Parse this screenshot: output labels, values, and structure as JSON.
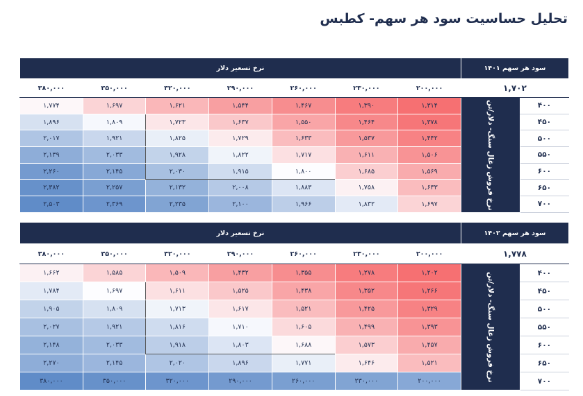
{
  "title": "تحلیل حساسیت سود هر سهم- کطبس",
  "tables": [
    {
      "eps_label": "سود هر سهم ۱۴۰۱",
      "eps_value": "۱,۷۰۲",
      "column_group": "نرخ تسعیر دلار",
      "row_group": "نرخ فروش زغال سنگ- دلار/تن",
      "columns": [
        "۲۰۰,۰۰۰",
        "۲۳۰,۰۰۰",
        "۲۶۰,۰۰۰",
        "۲۹۰,۰۰۰",
        "۳۲۰,۰۰۰",
        "۳۵۰,۰۰۰",
        "۳۸۰,۰۰۰"
      ],
      "rows": [
        {
          "label": "۴۰۰",
          "cells": [
            "۱,۳۱۴",
            "۱,۳۹۰",
            "۱,۴۶۷",
            "۱,۵۴۴",
            "۱,۶۲۱",
            "۱,۶۹۷",
            "۱,۷۷۴"
          ]
        },
        {
          "label": "۴۵۰",
          "cells": [
            "۱,۳۷۸",
            "۱,۴۶۴",
            "۱,۵۵۰",
            "۱,۶۳۷",
            "۱,۷۲۳",
            "۱,۸۰۹",
            "۱,۸۹۶"
          ]
        },
        {
          "label": "۵۰۰",
          "cells": [
            "۱,۴۴۲",
            "۱,۵۳۷",
            "۱,۶۳۳",
            "۱,۷۲۹",
            "۱,۸۲۵",
            "۱,۹۲۱",
            "۲,۰۱۷"
          ]
        },
        {
          "label": "۵۵۰",
          "cells": [
            "۱,۵۰۶",
            "۱,۶۱۱",
            "۱,۷۱۷",
            "۱,۸۲۲",
            "۱,۹۲۸",
            "۲,۰۳۳",
            "۲,۱۳۹"
          ]
        },
        {
          "label": "۶۰۰",
          "cells": [
            "۱,۵۶۹",
            "۱,۶۸۵",
            "۱,۸۰۰",
            "۱,۹۱۵",
            "۲,۰۳۰",
            "۲,۱۴۵",
            "۲,۲۶۰"
          ]
        },
        {
          "label": "۶۵۰",
          "cells": [
            "۱,۶۳۳",
            "۱,۷۵۸",
            "۱,۸۸۳",
            "۲,۰۰۸",
            "۲,۱۳۲",
            "۲,۲۵۷",
            "۲,۳۸۲"
          ]
        },
        {
          "label": "۷۰۰",
          "cells": [
            "۱,۶۹۷",
            "۱,۸۳۲",
            "۱,۹۶۶",
            "۲,۱۰۰",
            "۲,۲۳۵",
            "۲,۳۶۹",
            "۲,۵۰۳"
          ]
        }
      ]
    },
    {
      "eps_label": "سود هر سهم ۱۴۰۲",
      "eps_value": "۱,۷۷۸",
      "column_group": "نرخ تسعیر دلار",
      "row_group": "نرخ فروش زغال سنگ- دلار/تن",
      "columns": [
        "۲۰۰,۰۰۰",
        "۲۳۰,۰۰۰",
        "۲۶۰,۰۰۰",
        "۲۹۰,۰۰۰",
        "۳۲۰,۰۰۰",
        "۳۵۰,۰۰۰",
        "۳۸۰,۰۰۰"
      ],
      "rows": [
        {
          "label": "۴۰۰",
          "cells": [
            "۱,۲۰۲",
            "۱,۲۷۸",
            "۱,۳۵۵",
            "۱,۴۳۲",
            "۱,۵۰۹",
            "۱,۵۸۵",
            "۱,۶۶۲"
          ]
        },
        {
          "label": "۴۵۰",
          "cells": [
            "۱,۲۶۶",
            "۱,۳۵۲",
            "۱,۴۳۸",
            "۱,۵۲۵",
            "۱,۶۱۱",
            "۱,۶۹۷",
            "۱,۷۸۴"
          ]
        },
        {
          "label": "۵۰۰",
          "cells": [
            "۱,۳۲۹",
            "۱,۴۲۵",
            "۱,۵۲۱",
            "۱,۶۱۷",
            "۱,۷۱۳",
            "۱,۸۰۹",
            "۱,۹۰۵"
          ]
        },
        {
          "label": "۵۵۰",
          "cells": [
            "۱,۳۹۳",
            "۱,۴۹۹",
            "۱,۶۰۵",
            "۱,۷۱۰",
            "۱,۸۱۶",
            "۱,۹۲۱",
            "۲,۰۲۷"
          ]
        },
        {
          "label": "۶۰۰",
          "cells": [
            "۱,۴۵۷",
            "۱,۵۷۳",
            "۱,۶۸۸",
            "۱,۸۰۳",
            "۱,۹۱۸",
            "۲,۰۳۳",
            "۲,۱۴۸"
          ]
        },
        {
          "label": "۶۵۰",
          "cells": [
            "۱,۵۲۱",
            "۱,۶۴۶",
            "۱,۷۷۱",
            "۱,۸۹۶",
            "۲,۰۲۰",
            "۲,۱۴۵",
            "۲,۲۷۰"
          ]
        },
        {
          "label": "۷۰۰",
          "cells": [
            "۲۰۰,۰۰۰",
            "۲۳۰,۰۰۰",
            "۲۶۰,۰۰۰",
            "۲۹۰,۰۰۰",
            "۳۲۰,۰۰۰",
            "۳۵۰,۰۰۰",
            "۳۸۰,۰۰۰"
          ]
        }
      ]
    }
  ]
}
